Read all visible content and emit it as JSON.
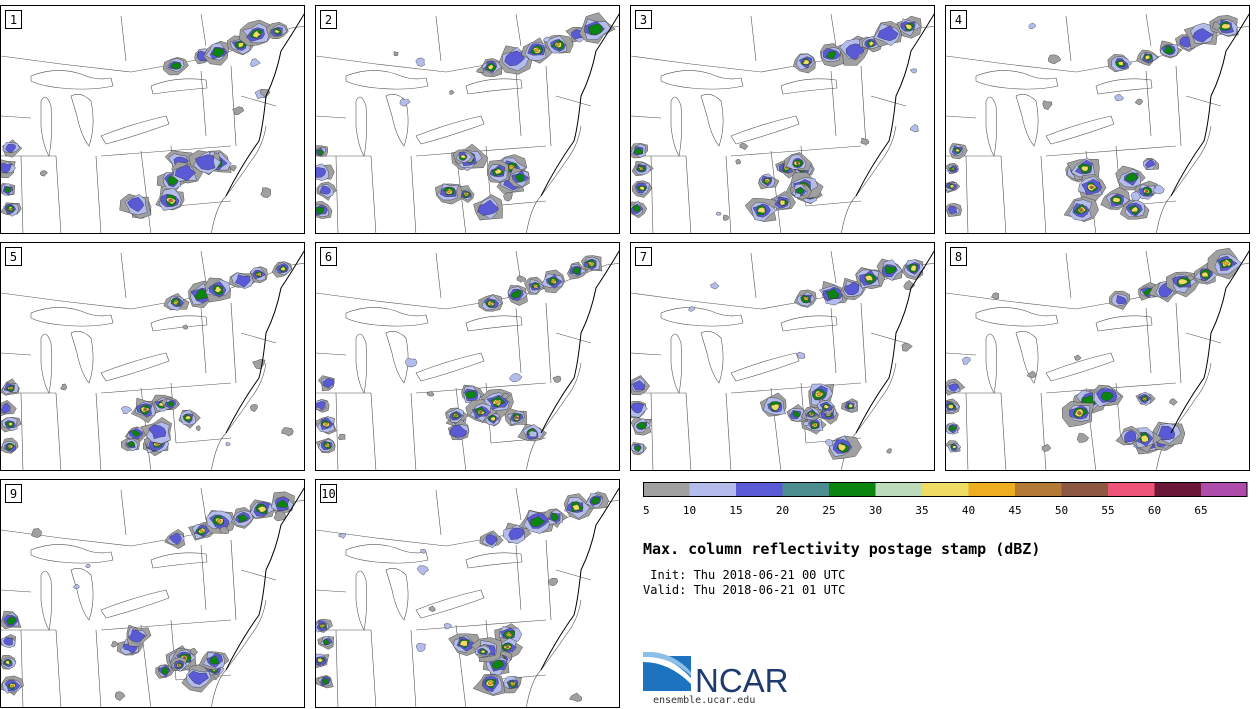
{
  "title": "Max. column reflectivity postage stamp (dBZ)",
  "init_label": " Init: Thu 2018-06-21 00 UTC",
  "valid_label": "Valid: Thu 2018-06-21 01 UTC",
  "logo_text": "NCAR",
  "site": "ensemble.ucar.edu",
  "members": [
    "1",
    "2",
    "3",
    "4",
    "5",
    "6",
    "7",
    "8",
    "9",
    "10"
  ],
  "legend": {
    "ticks": [
      "5",
      "10",
      "15",
      "20",
      "25",
      "30",
      "35",
      "40",
      "45",
      "50",
      "55",
      "60",
      "65"
    ],
    "colors": [
      "#a0a0a0",
      "#b4bcec",
      "#5a5ad6",
      "#4c8e90",
      "#0c8410",
      "#bcdcbc",
      "#eedc64",
      "#eeae22",
      "#b27a34",
      "#8c5842",
      "#ee5478",
      "#6c1838",
      "#ae4cac"
    ]
  }
}
